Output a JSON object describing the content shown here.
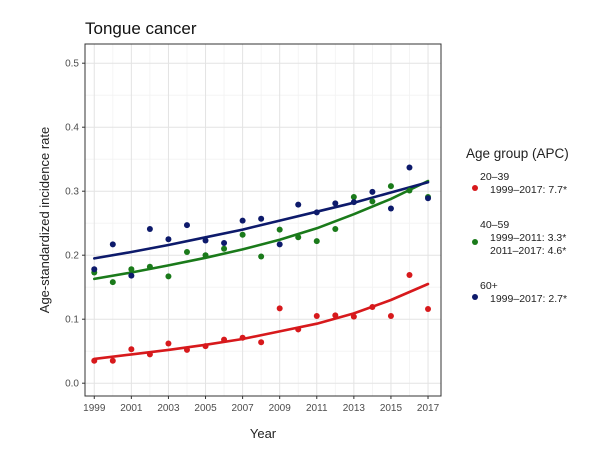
{
  "chart_data": {
    "type": "scatter",
    "title": "Tongue cancer",
    "xlabel": "Year",
    "ylabel": "Age-standardized incidence rate",
    "xlim": [
      1998.5,
      2017.7
    ],
    "ylim": [
      -0.02,
      0.53
    ],
    "x_ticks": [
      1999,
      2001,
      2003,
      2005,
      2007,
      2009,
      2011,
      2013,
      2015,
      2017
    ],
    "y_ticks": [
      0.0,
      0.1,
      0.2,
      0.3,
      0.4,
      0.5
    ],
    "y_tick_labels": [
      "0.0",
      "0.1",
      "0.2",
      "0.3",
      "0.4",
      "0.5"
    ],
    "grid": true,
    "legend_position": "right",
    "legend_title": "Age group (APC)",
    "series": [
      {
        "name": "20–39",
        "apc": [
          "1999–2017: 7.7*"
        ],
        "color": "#d7191c",
        "x": [
          1999,
          2000,
          2001,
          2002,
          2003,
          2004,
          2005,
          2006,
          2007,
          2008,
          2009,
          2010,
          2011,
          2012,
          2013,
          2014,
          2015,
          2016,
          2017
        ],
        "y": [
          0.035,
          0.035,
          0.053,
          0.045,
          0.062,
          0.052,
          0.058,
          0.068,
          0.071,
          0.064,
          0.117,
          0.084,
          0.105,
          0.106,
          0.104,
          0.119,
          0.105,
          0.169,
          0.116
        ],
        "fit": [
          [
            1999,
            0.038
          ],
          [
            2001,
            0.045
          ],
          [
            2003,
            0.052
          ],
          [
            2005,
            0.06
          ],
          [
            2007,
            0.069
          ],
          [
            2009,
            0.081
          ],
          [
            2011,
            0.093
          ],
          [
            2013,
            0.109
          ],
          [
            2015,
            0.13
          ],
          [
            2017,
            0.155
          ]
        ]
      },
      {
        "name": "40–59",
        "apc": [
          "1999–2011: 3.3*",
          "2011–2017: 4.6*"
        ],
        "color": "#1a7a1a",
        "x": [
          1999,
          2000,
          2001,
          2002,
          2003,
          2004,
          2005,
          2006,
          2007,
          2008,
          2009,
          2010,
          2011,
          2012,
          2013,
          2014,
          2015,
          2016,
          2017
        ],
        "y": [
          0.173,
          0.158,
          0.178,
          0.182,
          0.167,
          0.205,
          0.2,
          0.21,
          0.232,
          0.198,
          0.24,
          0.228,
          0.222,
          0.241,
          0.291,
          0.284,
          0.308,
          0.301,
          0.291
        ],
        "fit": [
          [
            1999,
            0.163
          ],
          [
            2001,
            0.173
          ],
          [
            2003,
            0.184
          ],
          [
            2005,
            0.196
          ],
          [
            2007,
            0.209
          ],
          [
            2009,
            0.224
          ],
          [
            2011,
            0.242
          ],
          [
            2013,
            0.264
          ],
          [
            2015,
            0.288
          ],
          [
            2017,
            0.316
          ]
        ]
      },
      {
        "name": "60+",
        "apc": [
          "1999–2017: 2.7*"
        ],
        "color": "#0d1a6b",
        "x": [
          1999,
          2000,
          2001,
          2002,
          2003,
          2004,
          2005,
          2006,
          2007,
          2008,
          2009,
          2010,
          2011,
          2012,
          2013,
          2014,
          2015,
          2016,
          2017
        ],
        "y": [
          0.178,
          0.217,
          0.168,
          0.241,
          0.225,
          0.247,
          0.223,
          0.219,
          0.254,
          0.257,
          0.217,
          0.279,
          0.267,
          0.281,
          0.283,
          0.299,
          0.273,
          0.337,
          0.289
        ],
        "fit": [
          [
            1999,
            0.195
          ],
          [
            2001,
            0.205
          ],
          [
            2003,
            0.216
          ],
          [
            2005,
            0.228
          ],
          [
            2007,
            0.24
          ],
          [
            2009,
            0.254
          ],
          [
            2011,
            0.268
          ],
          [
            2013,
            0.282
          ],
          [
            2015,
            0.298
          ],
          [
            2017,
            0.314
          ]
        ]
      }
    ]
  }
}
